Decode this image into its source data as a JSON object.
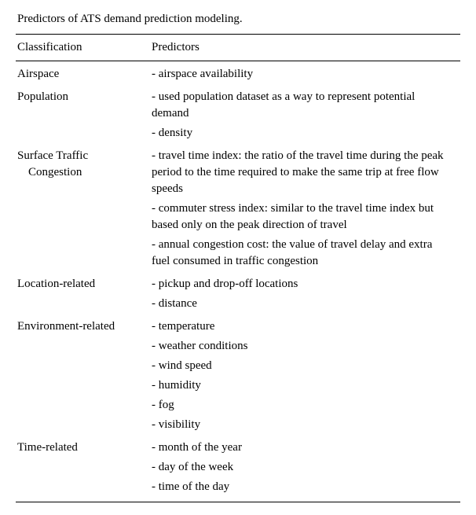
{
  "title": "Predictors of ATS demand prediction modeling.",
  "headers": {
    "col1": "Classification",
    "col2": "Predictors"
  },
  "rows": [
    {
      "classification": "Airspace",
      "predictor": "- airspace availability",
      "group_first": true
    },
    {
      "classification": "Population",
      "predictor": "- used population dataset as a way to represent potential demand",
      "group_first": true
    },
    {
      "classification": "",
      "predictor": "- density"
    },
    {
      "classification": "Surface Traffic",
      "predictor": "- travel time index: the ratio of the travel time during the peak period to the time required to make the same trip at free flow speeds",
      "group_first": true
    },
    {
      "classification": "Congestion",
      "classification_indent": true,
      "predictor": "",
      "skip": true
    },
    {
      "classification": "",
      "predictor": "- commuter stress index: similar to the travel time index but based only on the peak direction of travel"
    },
    {
      "classification": "",
      "predictor": "- annual congestion cost: the value of travel delay and extra fuel consumed in traffic congestion"
    },
    {
      "classification": "Location-related",
      "predictor": "- pickup and drop-off locations",
      "group_first": true
    },
    {
      "classification": "",
      "predictor": "- distance"
    },
    {
      "classification": "Environment-related",
      "predictor": "- temperature",
      "group_first": true
    },
    {
      "classification": "",
      "predictor": "- weather conditions"
    },
    {
      "classification": "",
      "predictor": "- wind speed"
    },
    {
      "classification": "",
      "predictor": "- humidity"
    },
    {
      "classification": "",
      "predictor": "- fog"
    },
    {
      "classification": "",
      "predictor": "- visibility"
    },
    {
      "classification": "Time-related",
      "predictor": "- month of the year",
      "group_first": true
    },
    {
      "classification": "",
      "predictor": "- day of the week"
    },
    {
      "classification": "",
      "predictor": "- time of the day"
    }
  ],
  "surface_traffic_second_line": "Congestion"
}
